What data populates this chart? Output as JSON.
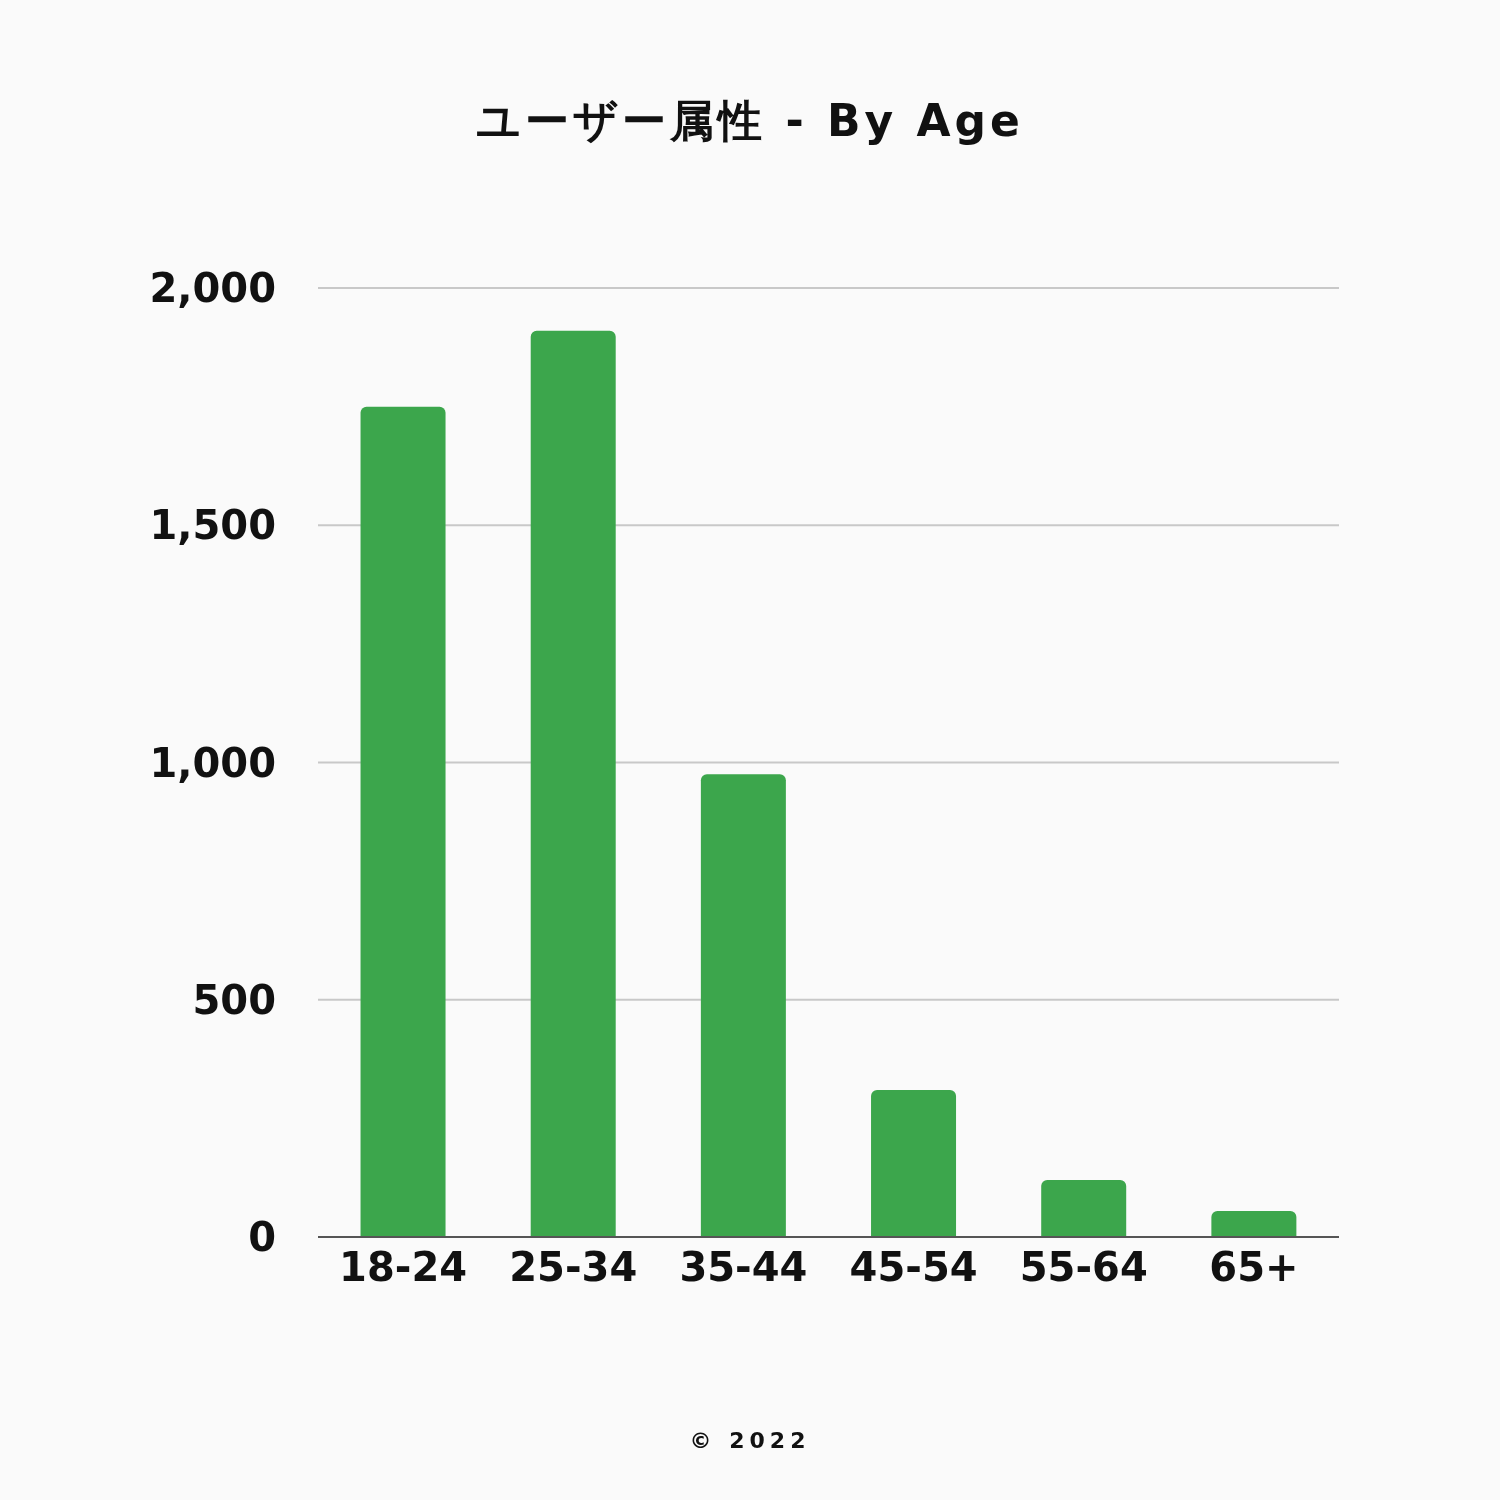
{
  "chart_data": {
    "type": "bar",
    "title": "ユーザー属性 - By Age",
    "categories": [
      "18-24",
      "25-34",
      "35-44",
      "45-54",
      "55-64",
      "65+"
    ],
    "values": [
      1750,
      1910,
      975,
      310,
      120,
      55
    ],
    "color": "#3ca64c",
    "ylim": [
      0,
      2000
    ],
    "yticks": [
      0,
      500,
      {
        "value": 1000,
        "label": "1,000"
      },
      {
        "value": 1500,
        "label": "1,500"
      },
      {
        "value": 2000,
        "label": "2,000"
      }
    ],
    "grid": "y",
    "annotations": [
      "© 2022"
    ]
  }
}
